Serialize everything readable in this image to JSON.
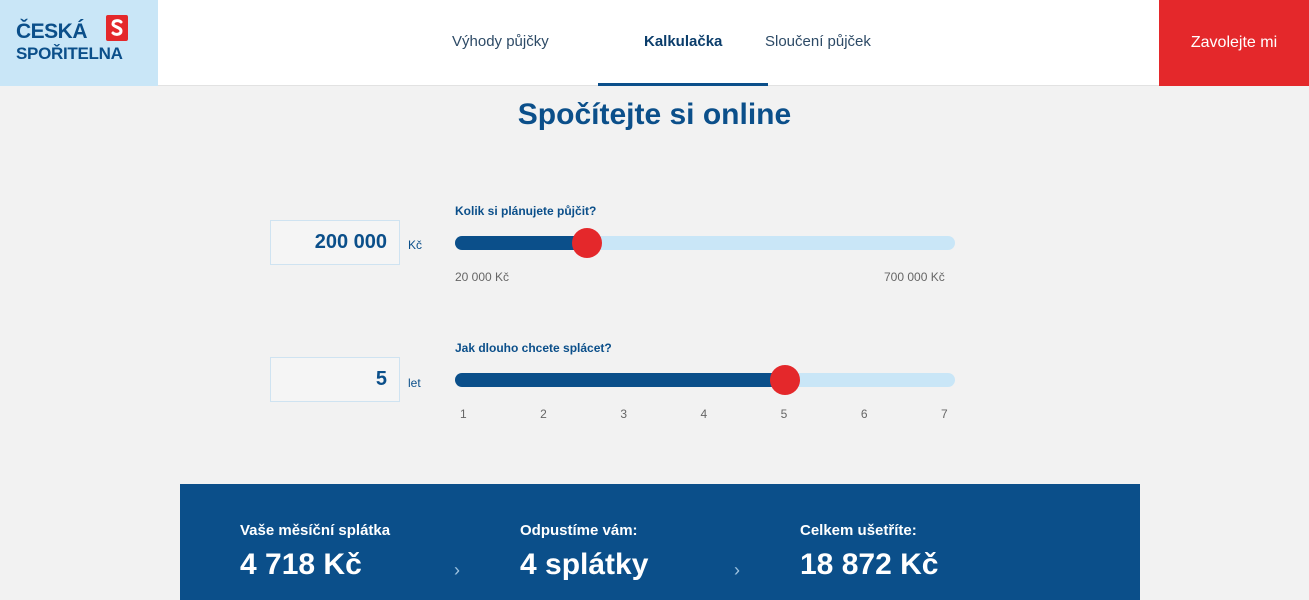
{
  "brand": {
    "name_line1": "ČESKÁ",
    "name_line2": "SPOŘITELNA",
    "mark_icon": "cs-logo-mark",
    "colors": {
      "blue": "#0b4f8a",
      "red": "#e4282b",
      "light_blue": "#c9e6f7"
    }
  },
  "nav": {
    "items": [
      {
        "label": "Výhody půjčky",
        "active": false
      },
      {
        "label": "Kalkulačka",
        "active": true
      },
      {
        "label": "Sloučení půjček",
        "active": false
      }
    ],
    "call_button": "Zavolejte mi"
  },
  "page": {
    "title": "Spočítejte si online"
  },
  "amount": {
    "label": "Kolik si plánujete půjčit?",
    "value": "200 000",
    "unit": "Kč",
    "min_label": "20 000 Kč",
    "max_label": "700 000 Kč",
    "min": 20000,
    "max": 700000,
    "current": 200000
  },
  "term": {
    "label": "Jak dlouho chcete splácet?",
    "value": "5",
    "unit": "let",
    "ticks": [
      "1",
      "2",
      "3",
      "4",
      "5",
      "6",
      "7"
    ],
    "min": 1,
    "max": 7,
    "current": 5
  },
  "results": {
    "items": [
      {
        "label": "Vaše měsíční splátka",
        "value": "4 718 Kč"
      },
      {
        "label": "Odpustíme vám:",
        "value": "4 splátky"
      },
      {
        "label": "Celkem ušetříte:",
        "value": "18 872 Kč"
      }
    ],
    "chevron_icon": "chevron-right-icon"
  }
}
